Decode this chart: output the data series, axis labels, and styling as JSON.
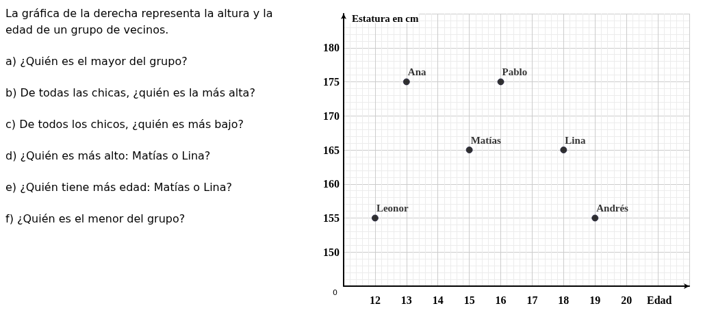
{
  "chart_data": {
    "type": "scatter",
    "title": "La gráfica de la derecha representa la altura y la edad de un grupo de vecinos.",
    "annotations": [
      "a) ¿Quién es el mayor del grupo?",
      "b) De todas las chicas, ¿quién es la más alta?",
      "c) De todos los chicos, ¿quién es más bajo?",
      "d) ¿Quién es más alto: Matías o Lina?",
      "e) ¿Quién tiene más edad: Matías o Lina?",
      "f) ¿Quién es el menor del grupo?",
      {
        "text": "Ana",
        "x": 13,
        "y": 175
      },
      {
        "text": "Pablo",
        "x": 16,
        "y": 175
      },
      {
        "text": "Matías",
        "x": 15,
        "y": 165
      },
      {
        "text": "Lina",
        "x": 18,
        "y": 165
      },
      {
        "text": "Leonor",
        "x": 12,
        "y": 155
      },
      {
        "text": "Andrés",
        "x": 19,
        "y": 155
      },
      "0"
    ],
    "xlabel": "Edad",
    "ylabel": "Estatura en cm",
    "x": [
      13,
      16,
      15,
      18,
      12,
      19
    ],
    "series": [
      {
        "color": "#000000",
        "values": [
          175,
          175,
          165,
          165,
          155,
          155
        ]
      }
    ],
    "marker": "circle",
    "grid": true,
    "xlim": [
      11,
      22
    ],
    "xticks": [
      12,
      13,
      14,
      15,
      16,
      17,
      18,
      19,
      20
    ],
    "ylim": [
      145,
      185
    ],
    "yticks": [
      150,
      155,
      160,
      165,
      170,
      175,
      180
    ]
  }
}
